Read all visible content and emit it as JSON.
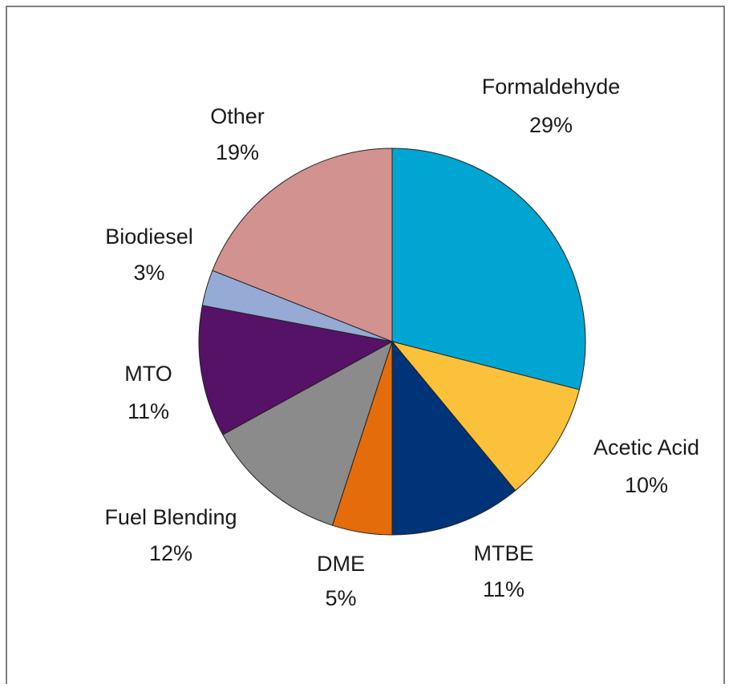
{
  "chart_data": {
    "type": "pie",
    "categories": [
      "Formaldehyde",
      "Acetic Acid",
      "MTBE",
      "DME",
      "Fuel Blending",
      "MTO",
      "Biodiesel",
      "Other"
    ],
    "values": [
      29,
      10,
      11,
      5,
      12,
      11,
      3,
      19
    ],
    "value_labels": [
      "29%",
      "10%",
      "11%",
      "5%",
      "12%",
      "11%",
      "3%",
      "19%"
    ],
    "colors": [
      "#00a6d1",
      "#fcc13b",
      "#003478",
      "#e46c0a",
      "#8b8b8b",
      "#551266",
      "#95aad5",
      "#d29290"
    ]
  }
}
